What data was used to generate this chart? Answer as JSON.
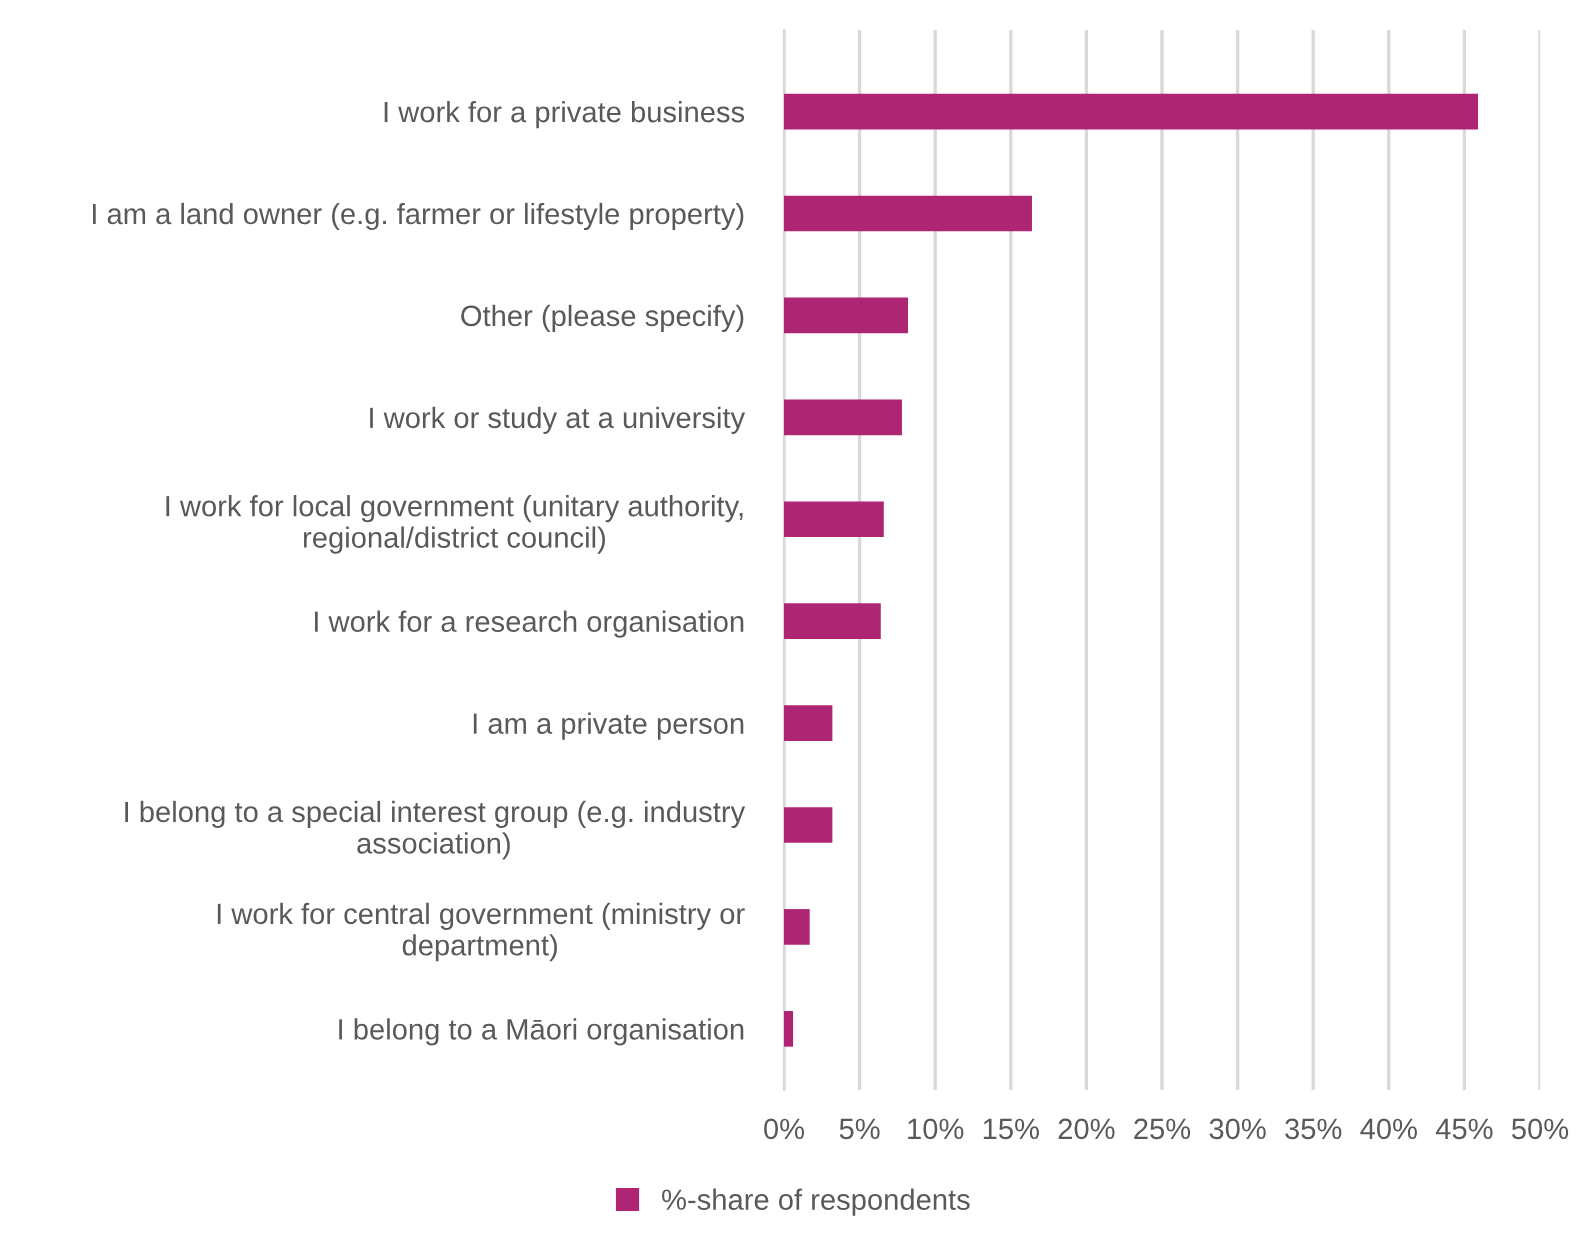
{
  "chart_data": {
    "type": "bar",
    "orientation": "horizontal",
    "categories": [
      "I work for a private business",
      "I am a land owner (e.g. farmer or lifestyle property)",
      "Other (please specify)",
      "I work or study at a university",
      "I work for local government (unitary authority,\nregional/district council)",
      "I work for a research organisation",
      "I am a private person",
      "I belong to a special interest group (e.g. industry\nassociation)",
      "I work for central government (ministry or\ndepartment)",
      "I belong to a Māori organisation"
    ],
    "series": [
      {
        "name": "%-share of respondents",
        "color": "#ae2573",
        "values": [
          45.9,
          16.4,
          8.2,
          7.8,
          6.6,
          6.4,
          3.2,
          3.2,
          1.7,
          0.6
        ]
      }
    ],
    "xlim": [
      0,
      50
    ],
    "xticks": [
      {
        "value": 0,
        "label": "0%"
      },
      {
        "value": 5,
        "label": "5%"
      },
      {
        "value": 10,
        "label": "10%"
      },
      {
        "value": 15,
        "label": "15%"
      },
      {
        "value": 20,
        "label": "20%"
      },
      {
        "value": 25,
        "label": "25%"
      },
      {
        "value": 30,
        "label": "30%"
      },
      {
        "value": 35,
        "label": "35%"
      },
      {
        "value": 40,
        "label": "40%"
      },
      {
        "value": 45,
        "label": "45%"
      },
      {
        "value": 50,
        "label": "50%"
      }
    ],
    "grid": "x",
    "legend": "bottom"
  }
}
